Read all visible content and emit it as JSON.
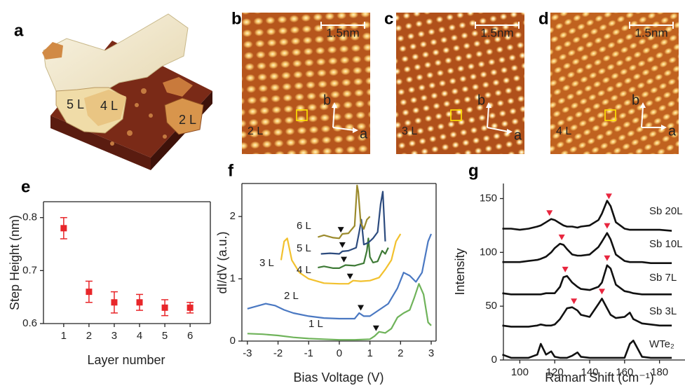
{
  "panels": [
    {
      "label": "a",
      "terraces": [
        "5 L",
        "4 L",
        "2 L"
      ]
    },
    {
      "label": "b",
      "scale_bar": "1.5nm",
      "layer": "2 L",
      "lattice_axes": [
        "b",
        "a"
      ]
    },
    {
      "label": "c",
      "scale_bar": "1.5nm",
      "layer": "3 L",
      "lattice_axes": [
        "b",
        "a"
      ]
    },
    {
      "label": "d",
      "scale_bar": "1.5nm",
      "layer": "4 L",
      "lattice_axes": [
        "b",
        "a"
      ]
    }
  ],
  "chart_data": [
    {
      "type": "scatter",
      "panel_label": "e",
      "x_label": "Layer number",
      "y_label": "Step Height (nm)",
      "x": [
        1,
        2,
        3,
        4,
        5,
        6
      ],
      "values": [
        0.78,
        0.66,
        0.64,
        0.64,
        0.63,
        0.63
      ],
      "errors": [
        0.02,
        0.02,
        0.02,
        0.015,
        0.015,
        0.01
      ],
      "color": "#e8262a",
      "xlim": [
        0.2,
        6.8
      ],
      "ylim": [
        0.6,
        0.83
      ],
      "xticks": [
        1,
        2,
        3,
        4,
        5,
        6
      ],
      "yticks": [
        0.6,
        0.7,
        0.8
      ]
    },
    {
      "type": "line",
      "panel_label": "f",
      "x_label": "Bias Voltage (V)",
      "y_label": "dI/dV (a.u.)",
      "xlim": [
        -3.18,
        3.16
      ],
      "ylim": [
        0,
        2.53
      ],
      "xticks": [
        -3,
        -2,
        -1,
        0,
        1,
        2,
        3
      ],
      "yticks": [
        0,
        1,
        2
      ],
      "marker_color": "#111111",
      "series": [
        {
          "name": "1 L",
          "color": "#6fb35a",
          "onset": 1.2,
          "x": [
            -3,
            -2.5,
            -2,
            -1.5,
            -1,
            -0.5,
            0,
            0.5,
            1,
            1.15,
            1.3,
            1.5,
            1.7,
            1.9,
            2.1,
            2.3,
            2.45,
            2.6,
            2.75,
            2.9,
            3
          ],
          "values": [
            0.12,
            0.11,
            0.09,
            0.06,
            0.04,
            0.03,
            0.02,
            0.02,
            0.03,
            0.08,
            0.15,
            0.13,
            0.2,
            0.38,
            0.45,
            0.5,
            0.7,
            0.92,
            0.75,
            0.3,
            0.25
          ]
        },
        {
          "name": "2 L",
          "color": "#4a78c2",
          "onset": 0.7,
          "x": [
            -3,
            -2.7,
            -2.4,
            -2.1,
            -1.8,
            -1.5,
            -1,
            -0.5,
            0,
            0.5,
            0.65,
            0.8,
            1,
            1.3,
            1.6,
            1.9,
            2.1,
            2.3,
            2.5,
            2.7,
            2.9,
            3
          ],
          "values": [
            0.52,
            0.56,
            0.6,
            0.57,
            0.5,
            0.45,
            0.4,
            0.37,
            0.36,
            0.36,
            0.45,
            0.4,
            0.4,
            0.5,
            0.6,
            0.85,
            1.1,
            1.05,
            0.95,
            1.1,
            1.6,
            1.72
          ]
        },
        {
          "name": "3 L",
          "color": "#f2c12e",
          "onset": 0.35,
          "x": [
            -1.9,
            -1.8,
            -1.7,
            -1.55,
            -1.3,
            -1,
            -0.5,
            0,
            0.3,
            0.45,
            0.7,
            1,
            1.3,
            1.5,
            1.7,
            1.85,
            2
          ],
          "values": [
            1.3,
            1.6,
            1.65,
            1.3,
            1.1,
            1.0,
            0.93,
            0.92,
            0.92,
            0.97,
            0.96,
            0.97,
            1.02,
            1.15,
            1.3,
            1.6,
            1.72
          ]
        },
        {
          "name": "4 L",
          "color": "#3e7a36",
          "onset": 0.15,
          "x": [
            -0.7,
            -0.5,
            -0.2,
            0,
            0.2,
            0.5,
            0.8,
            0.9,
            0.95,
            1.0,
            1.1,
            1.25,
            1.4,
            1.5,
            1.6
          ],
          "values": [
            1.18,
            1.2,
            1.17,
            1.17,
            1.22,
            1.21,
            1.25,
            1.45,
            1.65,
            1.35,
            1.26,
            1.28,
            1.45,
            1.4,
            1.5
          ]
        },
        {
          "name": "5 L",
          "color": "#2c4b7e",
          "onset": 0.1,
          "x": [
            -0.6,
            -0.3,
            0,
            0.1,
            0.3,
            0.55,
            0.65,
            0.72,
            0.8,
            0.95,
            1.1,
            1.25,
            1.35,
            1.42,
            1.5
          ],
          "values": [
            1.4,
            1.41,
            1.4,
            1.44,
            1.45,
            1.5,
            1.75,
            1.95,
            1.55,
            1.58,
            1.65,
            1.75,
            2.2,
            2.4,
            1.6
          ]
        },
        {
          "name": "6 L",
          "color": "#9b8a2c",
          "onset": 0.05,
          "x": [
            -0.7,
            -0.5,
            -0.2,
            0,
            0.1,
            0.3,
            0.5,
            0.58,
            0.62,
            0.7,
            0.8,
            0.9,
            1
          ],
          "values": [
            1.67,
            1.7,
            1.66,
            1.65,
            1.72,
            1.73,
            1.85,
            2.5,
            2.4,
            1.9,
            1.8,
            1.95,
            2.0
          ]
        }
      ]
    },
    {
      "type": "line",
      "panel_label": "g",
      "x_label": "Raman Shift (cm⁻¹)",
      "y_label": "Intensity",
      "xlim": [
        90.6,
        195.8
      ],
      "ylim": [
        0,
        164
      ],
      "xticks": [
        100,
        120,
        140,
        160,
        180
      ],
      "yticks": [
        0,
        50,
        100,
        150
      ],
      "marker_color": "#e8263f",
      "x": [
        90,
        95,
        100,
        105,
        110,
        112,
        115,
        118,
        120,
        123,
        125,
        127,
        130,
        133,
        135,
        140,
        145,
        147,
        150,
        152,
        155,
        160,
        163,
        165,
        170,
        175,
        180,
        187
      ],
      "series": [
        {
          "name": "Sb 20L",
          "color": "#111111",
          "peaks": [
            117,
            151
          ],
          "values": [
            122,
            122,
            121,
            122,
            124,
            125,
            128,
            131,
            130,
            127,
            125,
            124,
            124,
            123,
            124,
            125,
            130,
            136,
            148,
            143,
            128,
            122,
            121,
            121,
            121,
            121,
            121,
            120
          ]
        },
        {
          "name": "Sb 10L",
          "color": "#111111",
          "peaks": [
            124,
            150
          ],
          "values": [
            91,
            91,
            91,
            92,
            93,
            94,
            96,
            100,
            104,
            108,
            107,
            103,
            98,
            97,
            97,
            98,
            105,
            110,
            118,
            112,
            98,
            92,
            91,
            91,
            91,
            90,
            90,
            90
          ]
        },
        {
          "name": "Sb 7L",
          "color": "#111111",
          "peaks": [
            126,
            150
          ],
          "values": [
            62,
            61,
            61,
            61,
            61,
            61,
            62,
            62,
            62,
            68,
            77,
            78,
            72,
            68,
            66,
            65,
            68,
            72,
            88,
            85,
            70,
            64,
            63,
            62,
            61,
            61,
            61,
            61
          ]
        },
        {
          "name": "Sb 3L",
          "color": "#111111",
          "peaks": [
            131,
            147
          ],
          "values": [
            32,
            31,
            31,
            31,
            32,
            33,
            32,
            32,
            33,
            38,
            43,
            48,
            49,
            46,
            42,
            40,
            52,
            57,
            48,
            42,
            39,
            40,
            44,
            38,
            34,
            33,
            32,
            32
          ]
        },
        {
          "name": "WTe₂",
          "color": "#111111",
          "values": [
            5,
            2,
            2,
            2,
            5,
            15,
            5,
            8,
            3,
            2,
            2,
            2,
            4,
            7,
            3,
            2,
            2,
            2,
            2,
            2,
            2,
            2,
            15,
            18,
            3,
            2,
            2,
            2
          ]
        }
      ]
    }
  ]
}
